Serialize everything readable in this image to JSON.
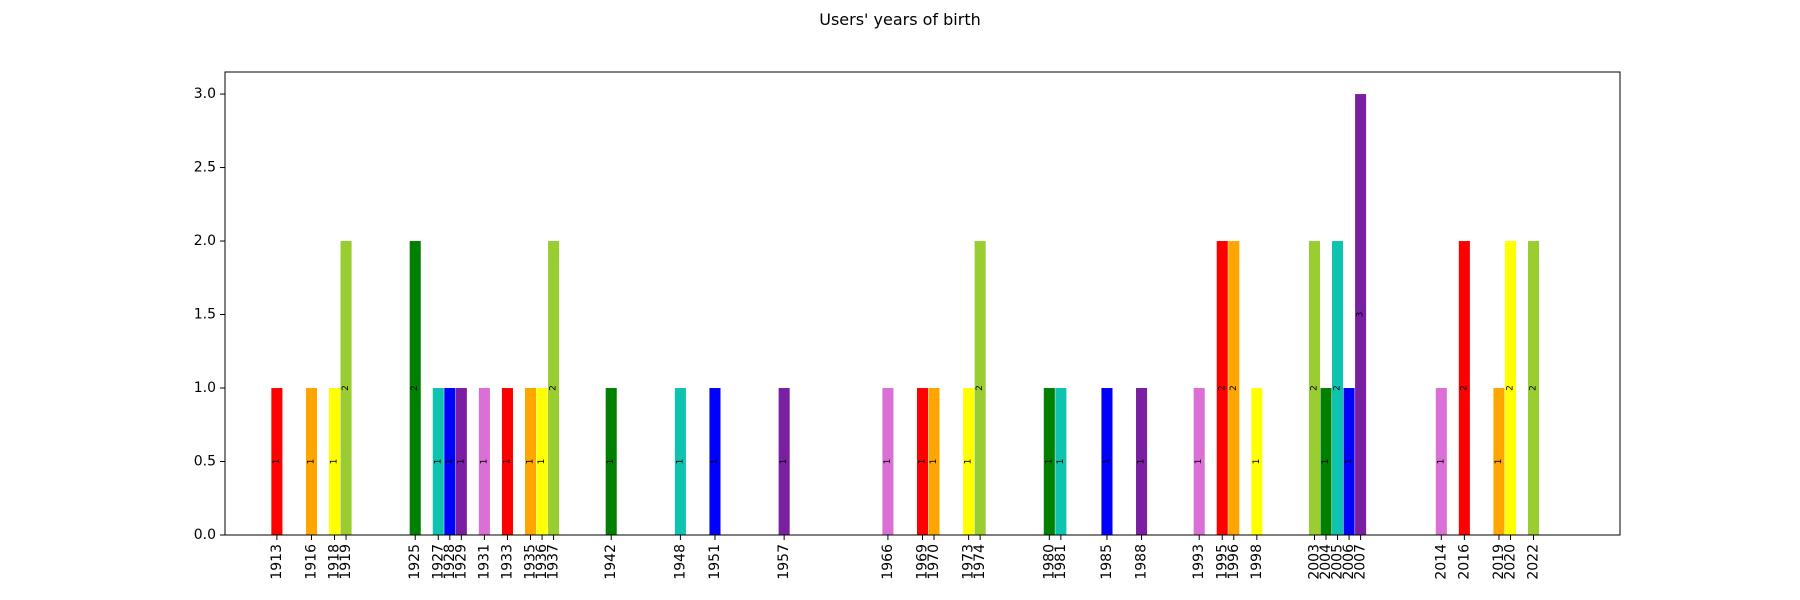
{
  "chart_data": {
    "type": "bar",
    "title": "Users' years of birth",
    "xlabel": "",
    "ylabel": "",
    "ylim": [
      0,
      3.15
    ],
    "yticks": [
      "0.0",
      "0.5",
      "1.0",
      "1.5",
      "2.0",
      "2.5",
      "3.0"
    ],
    "xlim": [
      1908.5,
      2029.5
    ],
    "grid": false,
    "legend": "none",
    "bars": [
      {
        "year": 1913,
        "value": 1,
        "color": "#ff0000"
      },
      {
        "year": 1916,
        "value": 1,
        "color": "#ffa500"
      },
      {
        "year": 1918,
        "value": 1,
        "color": "#ffff00"
      },
      {
        "year": 1919,
        "value": 2,
        "color": "#9acd32"
      },
      {
        "year": 1925,
        "value": 2,
        "color": "#008000"
      },
      {
        "year": 1927,
        "value": 1,
        "color": "#0ec4b0"
      },
      {
        "year": 1928,
        "value": 1,
        "color": "#0000ff"
      },
      {
        "year": 1929,
        "value": 1,
        "color": "#7b1fa2"
      },
      {
        "year": 1931,
        "value": 1,
        "color": "#da70d6"
      },
      {
        "year": 1933,
        "value": 1,
        "color": "#ff0000"
      },
      {
        "year": 1935,
        "value": 1,
        "color": "#ffa500"
      },
      {
        "year": 1936,
        "value": 1,
        "color": "#ffff00"
      },
      {
        "year": 1937,
        "value": 2,
        "color": "#9acd32"
      },
      {
        "year": 1942,
        "value": 1,
        "color": "#008000"
      },
      {
        "year": 1948,
        "value": 1,
        "color": "#0ec4b0"
      },
      {
        "year": 1951,
        "value": 1,
        "color": "#0000ff"
      },
      {
        "year": 1957,
        "value": 1,
        "color": "#7b1fa2"
      },
      {
        "year": 1966,
        "value": 1,
        "color": "#da70d6"
      },
      {
        "year": 1969,
        "value": 1,
        "color": "#ff0000"
      },
      {
        "year": 1970,
        "value": 1,
        "color": "#ffa500"
      },
      {
        "year": 1973,
        "value": 1,
        "color": "#ffff00"
      },
      {
        "year": 1974,
        "value": 2,
        "color": "#9acd32"
      },
      {
        "year": 1980,
        "value": 1,
        "color": "#008000"
      },
      {
        "year": 1981,
        "value": 1,
        "color": "#0ec4b0"
      },
      {
        "year": 1985,
        "value": 1,
        "color": "#0000ff"
      },
      {
        "year": 1988,
        "value": 1,
        "color": "#7b1fa2"
      },
      {
        "year": 1993,
        "value": 1,
        "color": "#da70d6"
      },
      {
        "year": 1995,
        "value": 2,
        "color": "#ff0000"
      },
      {
        "year": 1996,
        "value": 2,
        "color": "#ffa500"
      },
      {
        "year": 1998,
        "value": 1,
        "color": "#ffff00"
      },
      {
        "year": 2003,
        "value": 2,
        "color": "#9acd32"
      },
      {
        "year": 2004,
        "value": 1,
        "color": "#008000"
      },
      {
        "year": 2005,
        "value": 2,
        "color": "#0ec4b0"
      },
      {
        "year": 2006,
        "value": 1,
        "color": "#0000ff"
      },
      {
        "year": 2007,
        "value": 3,
        "color": "#7b1fa2"
      },
      {
        "year": 2014,
        "value": 1,
        "color": "#da70d6"
      },
      {
        "year": 2016,
        "value": 2,
        "color": "#ff0000"
      },
      {
        "year": 2019,
        "value": 1,
        "color": "#ffa500"
      },
      {
        "year": 2020,
        "value": 2,
        "color": "#ffff00"
      },
      {
        "year": 2022,
        "value": 2,
        "color": "#9acd32"
      }
    ]
  }
}
